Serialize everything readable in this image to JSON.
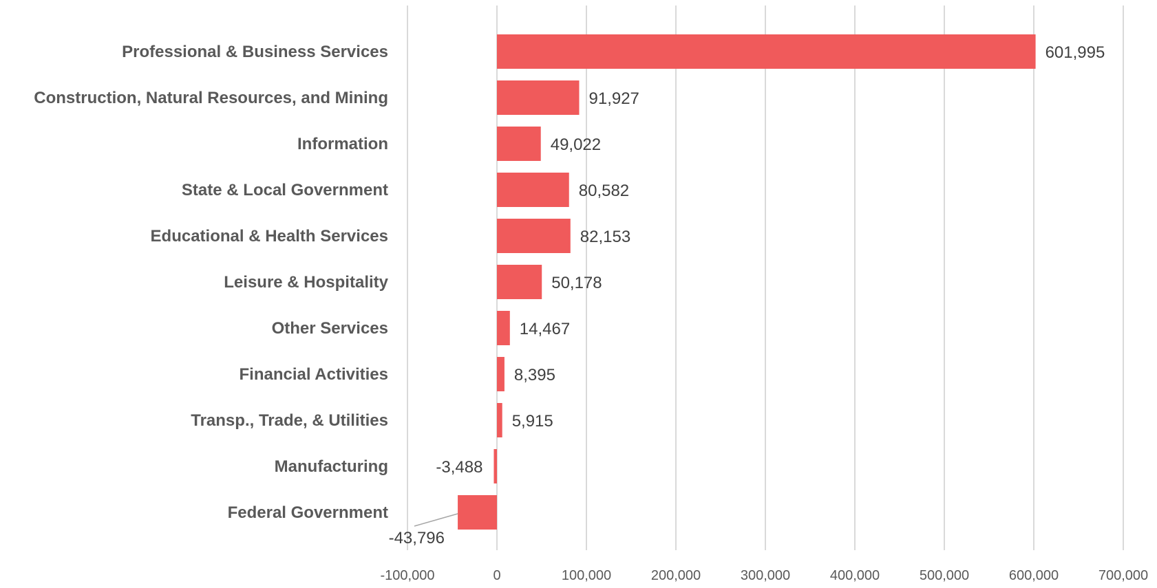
{
  "chart_data": {
    "type": "bar",
    "orientation": "horizontal",
    "categories": [
      "Professional & Business Services",
      "Construction, Natural Resources, and Mining",
      "Information",
      "State & Local Government",
      "Educational & Health Services",
      "Leisure & Hospitality",
      "Other Services",
      "Financial Activities",
      "Transp., Trade, & Utilities",
      "Manufacturing",
      "Federal Government"
    ],
    "values": [
      601995,
      91927,
      49022,
      80582,
      82153,
      50178,
      14467,
      8395,
      5915,
      -3488,
      -43796
    ],
    "value_labels": [
      "601,995",
      "91,927",
      "49,022",
      "80,582",
      "82,153",
      "50,178",
      "14,467",
      "8,395",
      "5,915",
      "-3,488",
      "-43,796"
    ],
    "xlim": [
      -100000,
      700000
    ],
    "xticks": [
      -100000,
      0,
      100000,
      200000,
      300000,
      400000,
      500000,
      600000,
      700000
    ],
    "xtick_labels": [
      "-100,000",
      "0",
      "100,000",
      "200,000",
      "300,000",
      "400,000",
      "500,000",
      "600,000",
      "700,000"
    ],
    "bar_color": "#f05a5b",
    "grid": "vertical",
    "title": "",
    "xlabel": "",
    "ylabel": ""
  }
}
